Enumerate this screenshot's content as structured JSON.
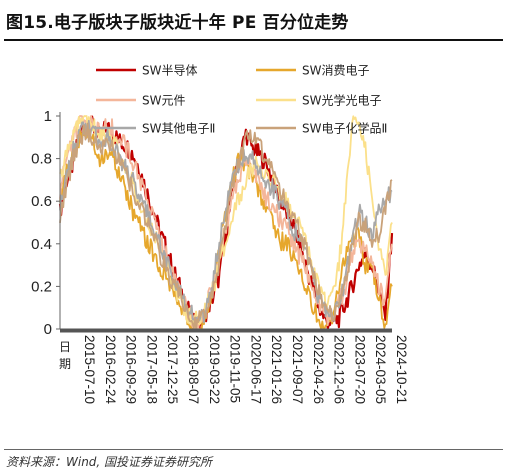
{
  "title": "图15.电子版块子版块近十年 PE 百分位走势",
  "source": "资料来源：Wind, 国投证券证券研究所",
  "chart_data": {
    "type": "line",
    "xlabel": "日期",
    "ylabel": "",
    "ylim": [
      0,
      1
    ],
    "yticks": [
      "0",
      "0.2",
      "0.4",
      "0.6",
      "0.8",
      "1"
    ],
    "xticks": [
      "2015-07-10",
      "2016-02-24",
      "2016-09-29",
      "2017-05-18",
      "2017-12-25",
      "2018-08-07",
      "2019-03-22",
      "2019-11-05",
      "2020-06-17",
      "2021-01-26",
      "2021-09-07",
      "2022-04-26",
      "2022-12-06",
      "2023-07-20",
      "2024-03-05",
      "2024-10-21"
    ],
    "legend": "top",
    "grid": false,
    "series": [
      {
        "name": "SW半导体",
        "color": "#c00000",
        "width": 2.2,
        "values": [
          0.55,
          0.7,
          0.78,
          0.92,
          0.97,
          0.95,
          0.9,
          0.95,
          0.92,
          0.88,
          0.86,
          0.82,
          0.75,
          0.65,
          0.56,
          0.46,
          0.38,
          0.28,
          0.2,
          0.12,
          0.03,
          0.02,
          0.08,
          0.15,
          0.25,
          0.45,
          0.65,
          0.8,
          0.92,
          0.85,
          0.82,
          0.78,
          0.7,
          0.62,
          0.55,
          0.5,
          0.4,
          0.3,
          0.2,
          0.1,
          0.04,
          0.03,
          0.05,
          0.12,
          0.2,
          0.3,
          0.35,
          0.3,
          0.18,
          0.06,
          0.45
        ]
      },
      {
        "name": "SW消费电子",
        "color": "#e6a72c",
        "width": 1.8,
        "values": [
          0.6,
          0.75,
          0.82,
          0.9,
          0.92,
          0.88,
          0.78,
          0.85,
          0.8,
          0.72,
          0.65,
          0.55,
          0.5,
          0.42,
          0.36,
          0.3,
          0.25,
          0.18,
          0.12,
          0.06,
          0.01,
          0.02,
          0.06,
          0.2,
          0.38,
          0.55,
          0.7,
          0.8,
          0.78,
          0.72,
          0.65,
          0.58,
          0.5,
          0.42,
          0.4,
          0.35,
          0.3,
          0.2,
          0.12,
          0.05,
          0.02,
          0.06,
          0.18,
          0.35,
          0.4,
          0.45,
          0.3,
          0.28,
          0.15,
          0.02,
          0.2
        ]
      },
      {
        "name": "SW元件",
        "color": "#f4b69a",
        "width": 1.8,
        "values": [
          0.65,
          0.8,
          0.9,
          0.97,
          0.98,
          0.96,
          0.93,
          0.96,
          0.94,
          0.9,
          0.85,
          0.78,
          0.7,
          0.6,
          0.52,
          0.42,
          0.35,
          0.25,
          0.18,
          0.1,
          0.05,
          0.03,
          0.1,
          0.2,
          0.35,
          0.48,
          0.62,
          0.72,
          0.8,
          0.75,
          0.7,
          0.62,
          0.58,
          0.52,
          0.48,
          0.42,
          0.35,
          0.28,
          0.18,
          0.1,
          0.06,
          0.05,
          0.12,
          0.2,
          0.35,
          0.4,
          0.38,
          0.3,
          0.2,
          0.12,
          0.4
        ]
      },
      {
        "name": "SW光学光电子",
        "color": "#fbe08a",
        "width": 1.8,
        "values": [
          0.7,
          0.85,
          0.92,
          0.96,
          0.98,
          0.95,
          0.9,
          0.92,
          0.88,
          0.82,
          0.76,
          0.68,
          0.6,
          0.52,
          0.45,
          0.38,
          0.3,
          0.22,
          0.15,
          0.08,
          0.04,
          0.05,
          0.1,
          0.18,
          0.3,
          0.42,
          0.55,
          0.62,
          0.7,
          0.75,
          0.78,
          0.72,
          0.7,
          0.65,
          0.6,
          0.55,
          0.48,
          0.4,
          0.3,
          0.2,
          0.12,
          0.15,
          0.3,
          0.6,
          0.95,
          0.98,
          0.85,
          0.6,
          0.4,
          0.25,
          0.5
        ]
      },
      {
        "name": "SW其他电子Ⅱ",
        "color": "#a8a8a8",
        "width": 1.8,
        "values": [
          0.58,
          0.72,
          0.85,
          0.93,
          0.95,
          0.92,
          0.88,
          0.9,
          0.86,
          0.8,
          0.75,
          0.7,
          0.62,
          0.55,
          0.48,
          0.4,
          0.32,
          0.25,
          0.18,
          0.12,
          0.06,
          0.04,
          0.08,
          0.22,
          0.4,
          0.58,
          0.7,
          0.78,
          0.82,
          0.8,
          0.76,
          0.7,
          0.66,
          0.6,
          0.55,
          0.48,
          0.42,
          0.35,
          0.25,
          0.15,
          0.08,
          0.06,
          0.1,
          0.25,
          0.4,
          0.55,
          0.5,
          0.45,
          0.55,
          0.6,
          0.65
        ]
      },
      {
        "name": "SW电子化学品Ⅱ",
        "color": "#c9a27a",
        "width": 1.8,
        "values": [
          0.52,
          0.68,
          0.8,
          0.9,
          0.93,
          0.9,
          0.85,
          0.88,
          0.84,
          0.78,
          0.72,
          0.66,
          0.58,
          0.5,
          0.44,
          0.36,
          0.28,
          0.22,
          0.16,
          0.1,
          0.05,
          0.04,
          0.09,
          0.18,
          0.32,
          0.5,
          0.66,
          0.8,
          0.88,
          0.92,
          0.86,
          0.8,
          0.74,
          0.66,
          0.6,
          0.54,
          0.46,
          0.38,
          0.28,
          0.18,
          0.1,
          0.07,
          0.1,
          0.22,
          0.4,
          0.52,
          0.48,
          0.4,
          0.45,
          0.55,
          0.7
        ]
      }
    ]
  }
}
